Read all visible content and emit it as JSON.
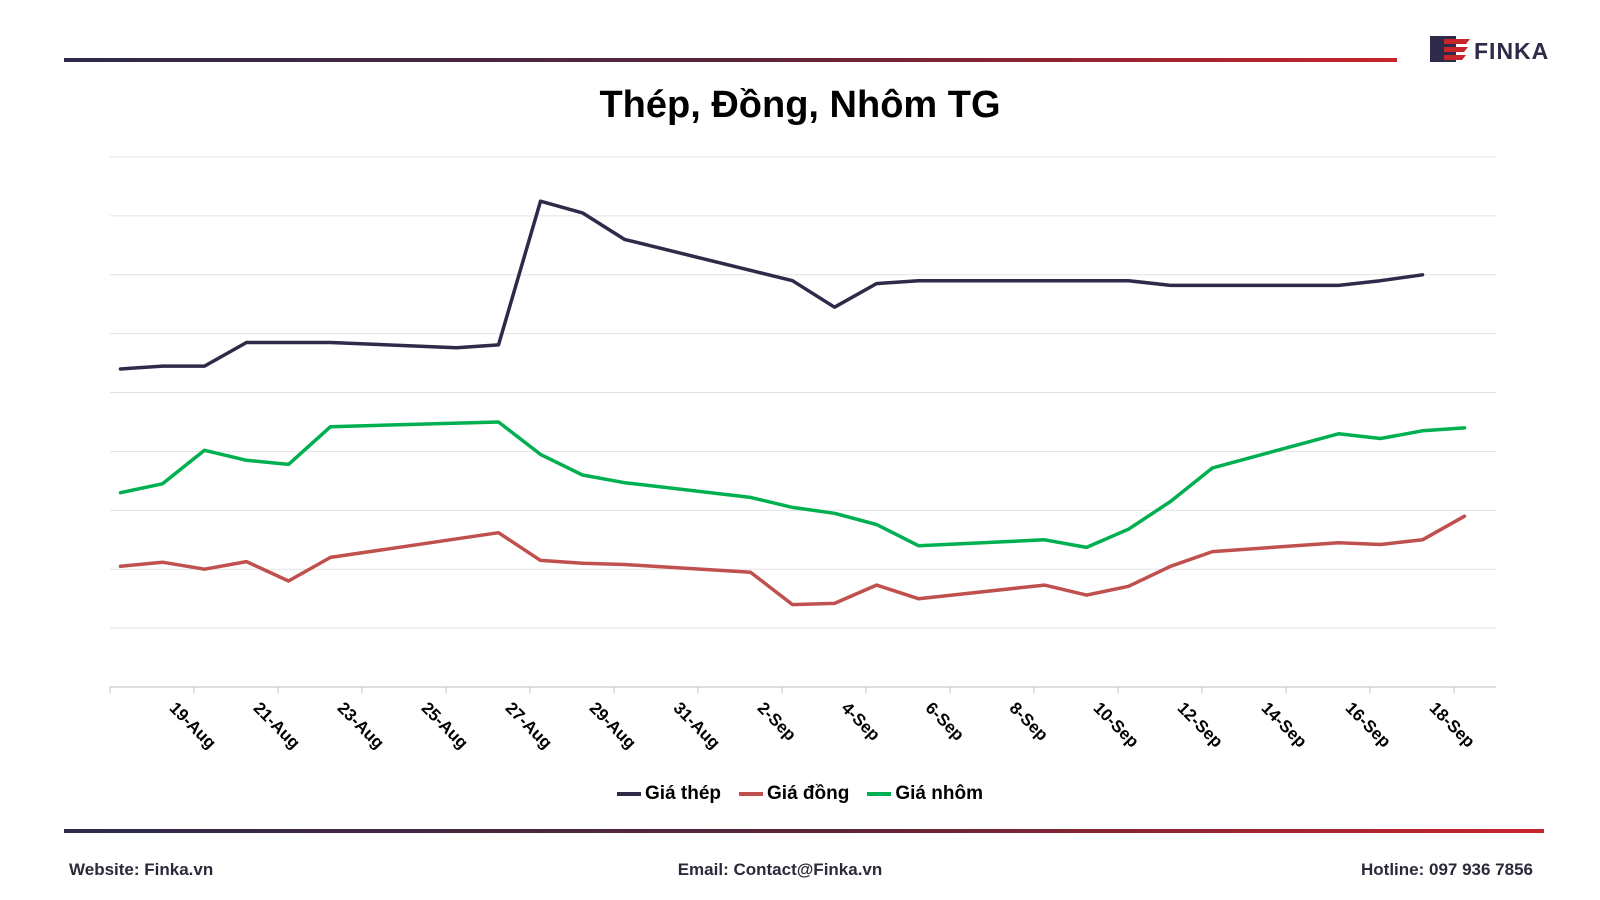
{
  "logo": {
    "text": "FINKA",
    "icon": "finka-flag-logo"
  },
  "chart_data": {
    "type": "line",
    "title": "Thép, Đồng, Nhôm TG",
    "xlabel": "",
    "ylabel": "",
    "ylim": [
      0,
      9
    ],
    "grid": true,
    "legend_position": "bottom",
    "x_tick_labels": [
      "19-Aug",
      "21-Aug",
      "23-Aug",
      "25-Aug",
      "27-Aug",
      "29-Aug",
      "31-Aug",
      "2-Sep",
      "4-Sep",
      "6-Sep",
      "8-Sep",
      "10-Sep",
      "12-Sep",
      "14-Sep",
      "16-Sep",
      "18-Sep"
    ],
    "x": [
      "18-Aug",
      "19-Aug",
      "20-Aug",
      "21-Aug",
      "22-Aug",
      "23-Aug",
      "24-Aug",
      "25-Aug",
      "26-Aug",
      "27-Aug",
      "28-Aug",
      "29-Aug",
      "30-Aug",
      "31-Aug",
      "1-Sep",
      "2-Sep",
      "3-Sep",
      "4-Sep",
      "5-Sep",
      "6-Sep",
      "7-Sep",
      "8-Sep",
      "9-Sep",
      "10-Sep",
      "11-Sep",
      "12-Sep",
      "13-Sep",
      "14-Sep",
      "15-Sep",
      "16-Sep",
      "17-Sep",
      "18-Sep",
      "19-Sep"
    ],
    "series": [
      {
        "name": "Giá thép",
        "color": "#2e2a4a",
        "values": [
          5.4,
          5.45,
          5.45,
          5.85,
          5.85,
          5.85,
          null,
          null,
          5.76,
          5.81,
          8.25,
          8.05,
          7.6,
          null,
          null,
          null,
          6.9,
          6.45,
          6.85,
          6.9,
          null,
          null,
          6.9,
          6.9,
          6.9,
          6.82,
          null,
          null,
          6.82,
          6.82,
          6.9,
          7.0,
          null
        ]
      },
      {
        "name": "Giá đồng",
        "color": "#c0504d",
        "values": [
          2.05,
          2.12,
          2.0,
          2.13,
          1.8,
          2.2,
          null,
          null,
          null,
          2.62,
          2.15,
          2.1,
          2.08,
          null,
          null,
          1.95,
          1.4,
          1.42,
          1.73,
          1.5,
          null,
          null,
          1.73,
          1.56,
          1.71,
          2.05,
          2.3,
          null,
          null,
          2.45,
          2.42,
          2.5,
          2.9
        ]
      },
      {
        "name": "Giá nhôm",
        "color": "#00b050",
        "values": [
          3.3,
          3.45,
          4.02,
          3.85,
          3.78,
          4.42,
          null,
          null,
          null,
          4.5,
          3.95,
          3.6,
          3.47,
          null,
          null,
          3.22,
          3.05,
          2.95,
          2.76,
          2.4,
          null,
          null,
          2.5,
          2.37,
          2.68,
          3.15,
          3.72,
          null,
          null,
          4.3,
          4.22,
          4.35,
          4.4
        ]
      }
    ]
  },
  "footer": {
    "website": "Website: Finka.vn",
    "email": "Email: Contact@Finka.vn",
    "hotline": "Hotline: 097 936 7856"
  }
}
